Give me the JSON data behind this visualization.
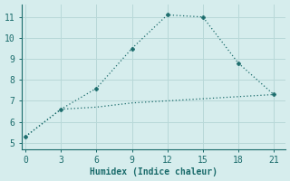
{
  "line1_x": [
    0,
    3,
    6,
    9,
    12,
    15,
    18,
    21
  ],
  "line1_y": [
    5.3,
    6.6,
    7.6,
    9.5,
    11.1,
    11.0,
    8.8,
    7.3
  ],
  "line2_x": [
    0,
    3,
    6,
    9,
    12,
    15,
    18,
    21
  ],
  "line2_y": [
    5.3,
    6.6,
    6.7,
    6.9,
    7.0,
    7.1,
    7.2,
    7.3
  ],
  "line_color": "#1a6b6b",
  "bg_color": "#d6eded",
  "grid_color": "#b8d8d8",
  "spine_color": "#1a6b6b",
  "xlabel": "Humidex (Indice chaleur)",
  "xticks": [
    0,
    3,
    6,
    9,
    12,
    15,
    18,
    21
  ],
  "yticks": [
    5,
    6,
    7,
    8,
    9,
    10,
    11
  ],
  "xlim": [
    -0.3,
    22.0
  ],
  "ylim": [
    4.7,
    11.6
  ],
  "xlabel_fontsize": 7,
  "tick_fontsize": 7
}
